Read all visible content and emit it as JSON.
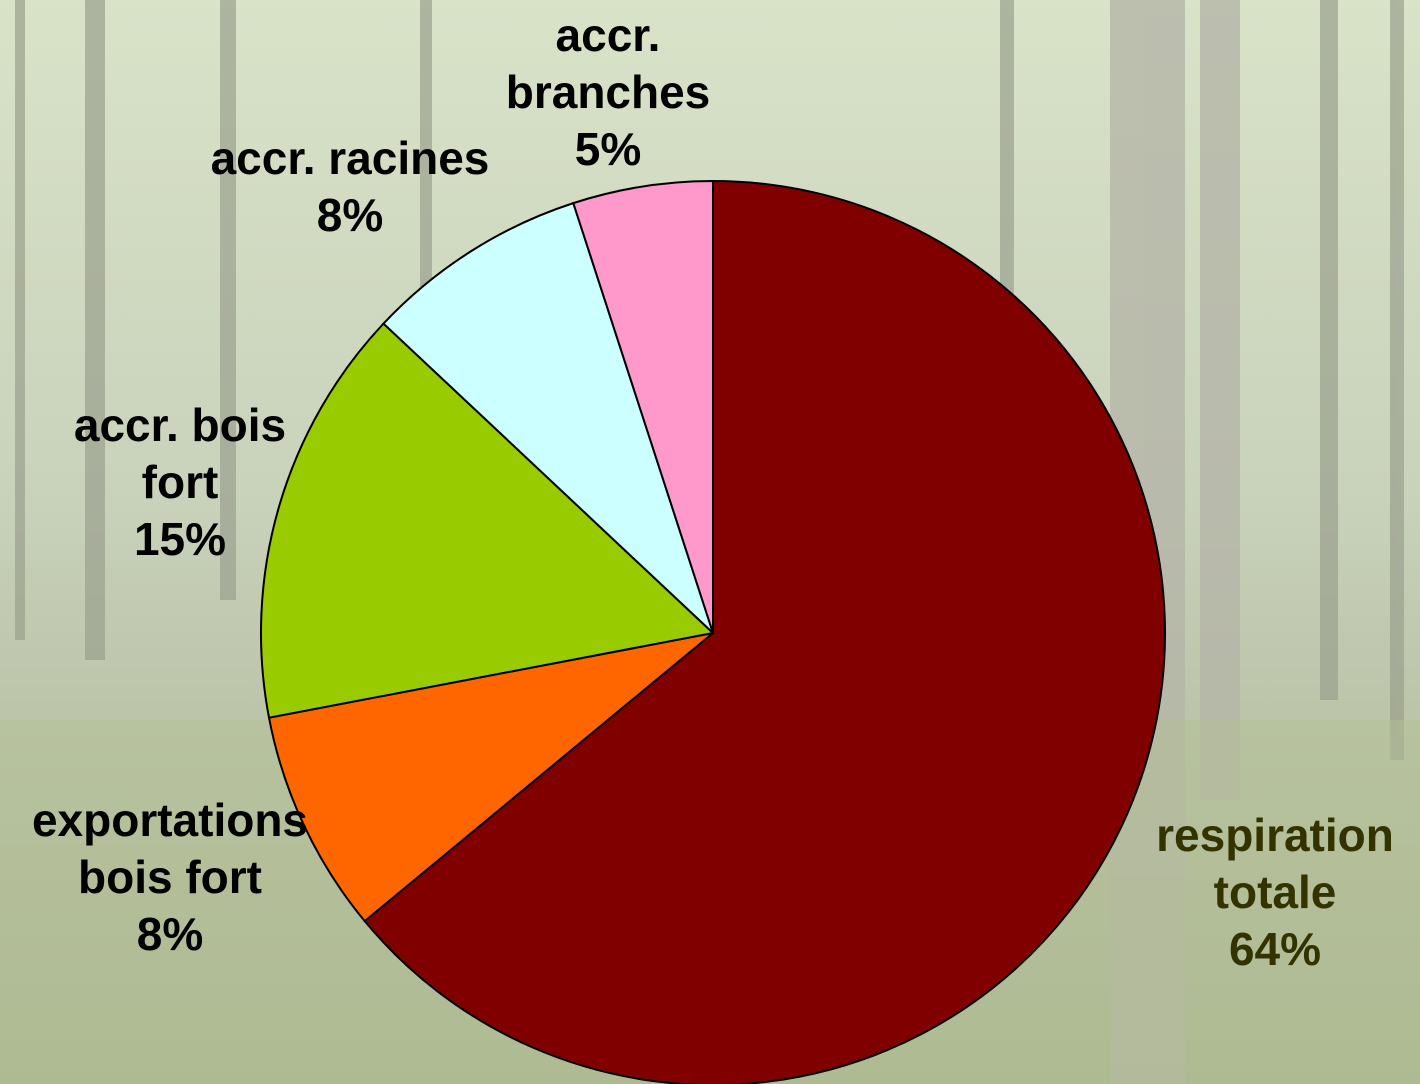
{
  "chart_data": {
    "type": "pie",
    "categories": [
      "respiration totale",
      "exportations bois fort",
      "accr. bois fort",
      "accr. racines",
      "accr. branches"
    ],
    "values": [
      64,
      8,
      15,
      8,
      5
    ],
    "value_labels": [
      "64%",
      "8%",
      "15%",
      "8%",
      "5%"
    ],
    "colors": [
      "#800000",
      "#ff6600",
      "#99cc00",
      "#ccffff",
      "#ff99cc"
    ]
  }
}
